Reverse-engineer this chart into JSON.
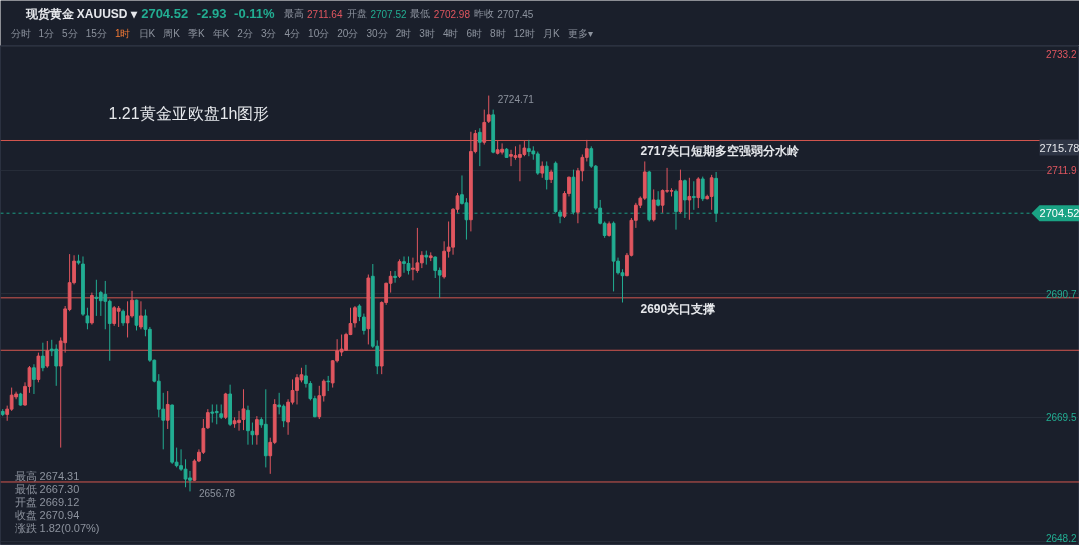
{
  "chart_data": {
    "type": "candlestick",
    "title": "现货黄金 XAUUSD ▾",
    "subtitle": "2704.52 -2.93 -0.11% 最高 2711.64 开盘 2707.52 最低 2702.98 昨收 2707.45",
    "annotations": [
      "分时 1分 5分 15分 1时 日K 周K 季K 年K 2分 3分 4分 10分 20分 30分 2时 3时 4时 6时 8时 12时 月K 更多▾",
      "1.21黄金亚欧盘1h图形",
      "2724.71",
      "2656.78",
      {
        "text": "2715.78",
        "y": 2715.78
      },
      {
        "text": "2704.52",
        "y": 2704.52
      },
      "最高 2674.31",
      "最低 2667.30",
      "开盘 2669.12",
      "收盘 2670.94",
      "涨跌 1.82(0.07%)"
    ],
    "categories": [
      null,
      null,
      null,
      null,
      null,
      null,
      null,
      null,
      null,
      null,
      null,
      null,
      null,
      null,
      null,
      null,
      null,
      null,
      null,
      null,
      null,
      null,
      null,
      null,
      null,
      null,
      null,
      null,
      null,
      null,
      null,
      null,
      null,
      null,
      null,
      null,
      null,
      null,
      null,
      null,
      null,
      null,
      null,
      null,
      null,
      null,
      null,
      null,
      null,
      null,
      null,
      null,
      null,
      null,
      null,
      null,
      null,
      null,
      null,
      null,
      null,
      null,
      null,
      null,
      null,
      null,
      null,
      null,
      null,
      null,
      null,
      null,
      null,
      null,
      null,
      null,
      null,
      null,
      null,
      null,
      null,
      null,
      null,
      null,
      null,
      null,
      null,
      null,
      null,
      null,
      null,
      null,
      null,
      null,
      null,
      null,
      null,
      null,
      null,
      null,
      null,
      null,
      null,
      null,
      null,
      null,
      null,
      null,
      null,
      null,
      null,
      null,
      null,
      null,
      null,
      null,
      null,
      null,
      null,
      null,
      null,
      null,
      null,
      null,
      null,
      null,
      null,
      null,
      null,
      null,
      null,
      null,
      null,
      null,
      null,
      null,
      null,
      null,
      null,
      null,
      null,
      null,
      null,
      null,
      null,
      null,
      null,
      null,
      null,
      null,
      null,
      null,
      null,
      null,
      null,
      null,
      null,
      null,
      null,
      null,
      null,
      null,
      null,
      null,
      null,
      null,
      null,
      null,
      null,
      null,
      null,
      null,
      null,
      null,
      null,
      null,
      null,
      null,
      null,
      null,
      null,
      null,
      null,
      null,
      null,
      null,
      null,
      null,
      null,
      null,
      null,
      null,
      null,
      null,
      null,
      null,
      null,
      null,
      null,
      null,
      null,
      null,
      null,
      null,
      null,
      null,
      null,
      null,
      null,
      null,
      null,
      null,
      null,
      null,
      null,
      null,
      null,
      null,
      null,
      null,
      null,
      null,
      null,
      null,
      null,
      null,
      null,
      null,
      null,
      null,
      null,
      null,
      null,
      null,
      null,
      null,
      null,
      null,
      null,
      null,
      null,
      null
    ],
    "ohlc": [
      [
        2670.5,
        2670.9,
        2669.7,
        2670.0
      ],
      [
        2670.0,
        2671.5,
        2668.9,
        2670.9
      ],
      [
        2670.9,
        2674.6,
        2670.6,
        2673.3
      ],
      [
        2673.0,
        2673.9,
        2672.6,
        2673.5
      ],
      [
        2673.5,
        2673.7,
        2671.5,
        2671.6
      ],
      [
        2671.6,
        2675.5,
        2671.5,
        2674.8
      ],
      [
        2674.8,
        2678.3,
        2673.7,
        2678.0
      ],
      [
        2678.0,
        2678.6,
        2673.5,
        2676.0
      ],
      [
        2676.0,
        2680.6,
        2675.5,
        2680.0
      ],
      [
        2680.0,
        2682.3,
        2677.4,
        2678.0
      ],
      [
        2678.3,
        2682.6,
        2678.0,
        2680.9
      ],
      [
        2681.2,
        2682.8,
        2680.0,
        2680.9
      ],
      [
        2681.2,
        2682.0,
        2674.9,
        2678.3
      ],
      [
        2678.3,
        2683.2,
        2664.3,
        2682.6
      ],
      [
        2682.3,
        2688.6,
        2680.6,
        2688.1
      ],
      [
        2688.0,
        2697.5,
        2687.7,
        2692.6
      ],
      [
        2692.6,
        2697.3,
        2692.3,
        2696.3
      ],
      [
        2696.3,
        2697.4,
        2695.7,
        2696.0
      ],
      [
        2695.8,
        2697.1,
        2686.9,
        2687.2
      ],
      [
        2686.9,
        2688.3,
        2684.6,
        2685.7
      ],
      [
        2685.7,
        2690.9,
        2685.4,
        2690.4
      ],
      [
        2690.1,
        2693.1,
        2686.9,
        2689.9
      ],
      [
        2690.9,
        2691.2,
        2686.9,
        2689.5
      ],
      [
        2690.6,
        2692.9,
        2684.6,
        2689.4
      ],
      [
        2689.4,
        2689.7,
        2679.2,
        2685.6
      ],
      [
        2685.6,
        2688.6,
        2685.2,
        2688.3
      ],
      [
        2687.7,
        2688.6,
        2685.0,
        2688.2
      ],
      [
        2687.7,
        2688.0,
        2685.2,
        2685.7
      ],
      [
        2685.7,
        2689.4,
        2683.2,
        2686.9
      ],
      [
        2686.9,
        2691.2,
        2686.6,
        2689.6
      ],
      [
        2689.6,
        2689.7,
        2684.4,
        2685.3
      ],
      [
        2685.0,
        2689.4,
        2684.6,
        2686.9
      ],
      [
        2686.9,
        2688.0,
        2683.4,
        2684.6
      ],
      [
        2684.6,
        2685.0,
        2679.0,
        2679.3
      ],
      [
        2679.3,
        2679.4,
        2675.5,
        2675.7
      ],
      [
        2675.7,
        2676.9,
        2669.5,
        2670.9
      ],
      [
        2670.9,
        2673.7,
        2664.0,
        2669.0
      ],
      [
        2669.0,
        2674.0,
        2667.5,
        2671.7
      ],
      [
        2671.6,
        2671.7,
        2661.5,
        2661.8
      ],
      [
        2661.8,
        2664.3,
        2660.9,
        2661.2
      ],
      [
        2661.2,
        2664.0,
        2660.3,
        2660.6
      ],
      [
        2660.6,
        2662.3,
        2657.5,
        2658.9
      ],
      [
        2659.1,
        2660.3,
        2656.78,
        2658.7
      ],
      [
        2658.7,
        2662.3,
        2658.6,
        2662.0
      ],
      [
        2662.0,
        2664.0,
        2661.8,
        2663.5
      ],
      [
        2663.5,
        2669.2,
        2663.2,
        2667.6
      ],
      [
        2667.7,
        2670.9,
        2667.5,
        2670.3
      ],
      [
        2670.4,
        2671.7,
        2668.6,
        2670.2
      ],
      [
        2670.5,
        2671.7,
        2668.3,
        2670.3
      ],
      [
        2670.1,
        2671.7,
        2669.2,
        2669.5
      ],
      [
        2669.5,
        2673.7,
        2669.2,
        2673.5
      ],
      [
        2673.5,
        2675.1,
        2668.0,
        2668.3
      ],
      [
        2668.4,
        2669.5,
        2667.7,
        2668.9
      ],
      [
        2668.6,
        2670.6,
        2667.2,
        2669.0
      ],
      [
        2669.12,
        2674.31,
        2667.3,
        2670.94
      ],
      [
        2670.7,
        2671.5,
        2664.8,
        2667.2
      ],
      [
        2667.1,
        2668.6,
        2664.8,
        2666.5
      ],
      [
        2666.5,
        2669.7,
        2664.8,
        2669.1
      ],
      [
        2669.1,
        2669.5,
        2667.7,
        2668.2
      ],
      [
        2668.3,
        2674.3,
        2660.9,
        2662.9
      ],
      [
        2662.9,
        2666.0,
        2659.8,
        2665.2
      ],
      [
        2665.2,
        2672.6,
        2664.9,
        2671.7
      ],
      [
        2671.6,
        2673.7,
        2670.0,
        2671.3
      ],
      [
        2671.4,
        2671.7,
        2667.8,
        2668.9
      ],
      [
        2668.7,
        2672.6,
        2666.5,
        2672.1
      ],
      [
        2672.1,
        2676.0,
        2671.7,
        2674.1
      ],
      [
        2674.1,
        2676.9,
        2671.7,
        2676.3
      ],
      [
        2675.9,
        2678.0,
        2675.5,
        2676.8
      ],
      [
        2676.6,
        2678.5,
        2674.6,
        2675.3
      ],
      [
        2675.3,
        2675.7,
        2672.4,
        2672.7
      ],
      [
        2672.7,
        2673.2,
        2669.5,
        2669.6
      ],
      [
        2669.6,
        2674.9,
        2669.2,
        2673.2
      ],
      [
        2673.2,
        2676.0,
        2672.2,
        2675.7
      ],
      [
        2675.7,
        2676.6,
        2674.0,
        2675.6
      ],
      [
        2675.4,
        2679.3,
        2674.6,
        2679.2
      ],
      [
        2679.2,
        2682.9,
        2678.9,
        2680.9
      ],
      [
        2680.7,
        2683.7,
        2680.0,
        2681.2
      ],
      [
        2681.0,
        2684.0,
        2680.9,
        2683.7
      ],
      [
        2683.7,
        2688.3,
        2683.6,
        2685.6
      ],
      [
        2685.7,
        2688.6,
        2684.9,
        2688.3
      ],
      [
        2688.6,
        2688.9,
        2686.0,
        2686.8
      ],
      [
        2686.7,
        2687.3,
        2683.7,
        2684.4
      ],
      [
        2684.7,
        2694.0,
        2682.0,
        2693.4
      ],
      [
        2693.7,
        2695.8,
        2681.4,
        2681.7
      ],
      [
        2681.7,
        2682.7,
        2676.9,
        2678.3
      ],
      [
        2678.3,
        2689.4,
        2676.9,
        2689.2
      ],
      [
        2689.2,
        2692.6,
        2688.8,
        2692.5
      ],
      [
        2692.5,
        2694.6,
        2690.9,
        2693.7
      ],
      [
        2693.7,
        2694.6,
        2692.6,
        2693.5
      ],
      [
        2693.7,
        2696.6,
        2693.4,
        2696.2
      ],
      [
        2696.2,
        2697.1,
        2694.3,
        2695.9
      ],
      [
        2695.9,
        2697.1,
        2694.0,
        2694.7
      ],
      [
        2694.9,
        2696.9,
        2693.0,
        2695.1
      ],
      [
        2694.7,
        2702.0,
        2694.3,
        2696.0
      ],
      [
        2696.0,
        2698.0,
        2695.1,
        2697.3
      ],
      [
        2697.3,
        2698.1,
        2695.7,
        2697.0
      ],
      [
        2696.9,
        2697.8,
        2696.3,
        2697.2
      ],
      [
        2697.0,
        2697.1,
        2693.4,
        2694.7
      ],
      [
        2694.7,
        2695.2,
        2690.0,
        2693.9
      ],
      [
        2693.6,
        2699.7,
        2693.3,
        2698.0
      ],
      [
        2698.0,
        2703.1,
        2696.9,
        2698.7
      ],
      [
        2698.7,
        2705.4,
        2697.4,
        2705.2
      ],
      [
        2705.2,
        2708.0,
        2704.6,
        2707.5
      ],
      [
        2707.7,
        2711.0,
        2706.0,
        2706.2
      ],
      [
        2706.3,
        2707.1,
        2700.0,
        2703.4
      ],
      [
        2703.4,
        2718.5,
        2701.4,
        2715.1
      ],
      [
        2715.1,
        2718.8,
        2714.8,
        2718.2
      ],
      [
        2718.4,
        2719.1,
        2712.6,
        2716.7
      ],
      [
        2716.7,
        2722.3,
        2716.3,
        2720.1
      ],
      [
        2720.3,
        2724.71,
        2720.0,
        2721.4
      ],
      [
        2721.4,
        2722.3,
        2714.8,
        2715.0
      ],
      [
        2714.8,
        2716.9,
        2714.6,
        2715.4
      ],
      [
        2715.0,
        2716.5,
        2714.6,
        2715.5
      ],
      [
        2715.5,
        2715.7,
        2714.1,
        2714.1
      ],
      [
        2714.3,
        2715.4,
        2712.6,
        2714.6
      ],
      [
        2714.1,
        2716.0,
        2713.7,
        2714.4
      ],
      [
        2714.1,
        2716.3,
        2710.0,
        2714.6
      ],
      [
        2714.6,
        2716.9,
        2714.3,
        2715.7
      ],
      [
        2715.6,
        2717.1,
        2714.3,
        2715.1
      ],
      [
        2715.2,
        2716.0,
        2713.7,
        2714.7
      ],
      [
        2714.7,
        2715.1,
        2711.1,
        2711.4
      ],
      [
        2711.4,
        2713.4,
        2710.6,
        2712.6
      ],
      [
        2712.6,
        2713.4,
        2708.6,
        2710.3
      ],
      [
        2710.3,
        2712.0,
        2709.7,
        2711.6
      ],
      [
        2713.1,
        2713.4,
        2704.6,
        2704.8
      ],
      [
        2704.7,
        2705.1,
        2702.8,
        2704.0
      ],
      [
        2704.0,
        2708.3,
        2703.7,
        2707.9
      ],
      [
        2707.9,
        2710.8,
        2707.4,
        2710.7
      ],
      [
        2710.7,
        2712.0,
        2704.3,
        2704.7
      ],
      [
        2704.7,
        2712.3,
        2702.8,
        2711.8
      ],
      [
        2711.8,
        2714.6,
        2710.0,
        2714.1
      ],
      [
        2714.1,
        2717.1,
        2713.4,
        2715.6
      ],
      [
        2715.6,
        2716.0,
        2712.3,
        2712.6
      ],
      [
        2712.6,
        2712.8,
        2705.1,
        2705.4
      ],
      [
        2705.4,
        2706.8,
        2702.6,
        2702.8
      ],
      [
        2702.8,
        2703.1,
        2700.3,
        2700.7
      ],
      [
        2700.7,
        2703.1,
        2700.5,
        2702.7
      ],
      [
        2702.8,
        2703.1,
        2691.1,
        2696.3
      ],
      [
        2696.3,
        2696.9,
        2694.0,
        2694.3
      ],
      [
        2694.3,
        2694.9,
        2689.2,
        2693.8
      ],
      [
        2693.8,
        2697.7,
        2693.7,
        2697.3
      ],
      [
        2697.3,
        2703.7,
        2697.1,
        2703.3
      ],
      [
        2703.3,
        2706.3,
        2702.0,
        2705.9
      ],
      [
        2705.9,
        2707.4,
        2705.4,
        2707.1
      ],
      [
        2707.1,
        2713.4,
        2706.8,
        2711.6
      ],
      [
        2711.6,
        2711.8,
        2703.1,
        2703.4
      ],
      [
        2703.4,
        2708.6,
        2703.1,
        2706.8
      ],
      [
        2706.8,
        2708.3,
        2705.7,
        2705.9
      ],
      [
        2705.9,
        2708.6,
        2704.6,
        2708.4
      ],
      [
        2708.3,
        2712.3,
        2708.0,
        2708.4
      ],
      [
        2708.3,
        2708.8,
        2707.4,
        2708.4
      ],
      [
        2708.3,
        2708.6,
        2701.7,
        2704.8
      ],
      [
        2704.8,
        2712.0,
        2704.5,
        2710.1
      ],
      [
        2710.1,
        2710.3,
        2703.7,
        2706.8
      ],
      [
        2706.8,
        2710.6,
        2703.4,
        2707.4
      ],
      [
        2707.4,
        2710.0,
        2705.1,
        2707.2
      ],
      [
        2707.2,
        2710.7,
        2705.4,
        2710.4
      ],
      [
        2710.4,
        2710.8,
        2706.6,
        2707.0
      ],
      [
        2707.0,
        2707.7,
        2706.9,
        2707.4
      ],
      [
        2707.4,
        2711.1,
        2705.1,
        2710.6
      ],
      [
        2710.5,
        2711.6,
        2703.0,
        2704.52
      ],
      null,
      null,
      null,
      null,
      null,
      null,
      null,
      null,
      null,
      null,
      null,
      null,
      null,
      null,
      null,
      null,
      null,
      null,
      null,
      null,
      null,
      null,
      null,
      null,
      null,
      null,
      null,
      null,
      null,
      null,
      null,
      null,
      null,
      null,
      null,
      null,
      null,
      null,
      null,
      null,
      null,
      null,
      null,
      null,
      null,
      null,
      null,
      null,
      null,
      null,
      null,
      null,
      null,
      null,
      null,
      null,
      null,
      null,
      null,
      null,
      null,
      null,
      null,
      null,
      null,
      null,
      null,
      null,
      null,
      null,
      null,
      null,
      null,
      null,
      null,
      null,
      null,
      null,
      null,
      null,
      null
    ],
    "colors": [
      "#22ad92",
      "#e0565f",
      "#e0565f",
      "#e0565f",
      "#22ad92",
      "#e0565f",
      "#e0565f",
      "#22ad92",
      "#e0565f",
      "#22ad92",
      "#e0565f",
      "#22ad92",
      "#22ad92",
      "#e0565f",
      "#e0565f",
      "#e0565f",
      "#e0565f",
      "#22ad92",
      "#22ad92",
      "#22ad92",
      "#e0565f",
      "#22ad92",
      "#22ad92",
      "#22ad92",
      "#22ad92",
      "#e0565f",
      "#e0565f",
      "#22ad92",
      "#e0565f",
      "#e0565f",
      "#22ad92",
      "#e0565f",
      "#22ad92",
      "#22ad92",
      "#22ad92",
      "#22ad92",
      "#22ad92",
      "#e0565f",
      "#22ad92",
      "#22ad92",
      "#22ad92",
      "#22ad92",
      "#22ad92",
      "#e0565f",
      "#e0565f",
      "#e0565f",
      "#e0565f",
      "#22ad92",
      "#22ad92",
      "#22ad92",
      "#e0565f",
      "#22ad92",
      "#e0565f",
      "#e0565f",
      "#e0565f",
      "#22ad92",
      "#22ad92",
      "#e0565f",
      "#22ad92",
      "#22ad92",
      "#e0565f",
      "#e0565f",
      "#22ad92",
      "#22ad92",
      "#e0565f",
      "#e0565f",
      "#e0565f",
      "#e0565f",
      "#22ad92",
      "#22ad92",
      "#22ad92",
      "#e0565f",
      "#e0565f",
      "#22ad92",
      "#e0565f",
      "#e0565f",
      "#e0565f",
      "#e0565f",
      "#e0565f",
      "#e0565f",
      "#22ad92",
      "#22ad92",
      "#e0565f",
      "#22ad92",
      "#22ad92",
      "#e0565f",
      "#e0565f",
      "#e0565f",
      "#22ad92",
      "#e0565f",
      "#22ad92",
      "#22ad92",
      "#e0565f",
      "#e0565f",
      "#e0565f",
      "#22ad92",
      "#e0565f",
      "#22ad92",
      "#22ad92",
      "#e0565f",
      "#e0565f",
      "#e0565f",
      "#e0565f",
      "#22ad92",
      "#22ad92",
      "#e0565f",
      "#e0565f",
      "#22ad92",
      "#e0565f",
      "#e0565f",
      "#22ad92",
      "#e0565f",
      "#e0565f",
      "#22ad92",
      "#e0565f",
      "#e0565f",
      "#e0565f",
      "#e0565f",
      "#22ad92",
      "#22ad92",
      "#22ad92",
      "#e0565f",
      "#22ad92",
      "#e0565f",
      "#22ad92",
      "#22ad92",
      "#e0565f",
      "#e0565f",
      "#22ad92",
      "#e0565f",
      "#e0565f",
      "#e0565f",
      "#22ad92",
      "#22ad92",
      "#22ad92",
      "#22ad92",
      "#e0565f",
      "#22ad92",
      "#22ad92",
      "#22ad92",
      "#e0565f",
      "#e0565f",
      "#e0565f",
      "#e0565f",
      "#e0565f",
      "#22ad92",
      "#e0565f",
      "#22ad92",
      "#e0565f",
      "#e0565f",
      "#e0565f",
      "#22ad92",
      "#e0565f",
      "#22ad92",
      "#e0565f",
      "#22ad92",
      "#e0565f",
      "#22ad92",
      "#e0565f",
      "#e0565f",
      "#22ad92",
      null,
      null,
      null,
      null,
      null,
      null,
      null,
      null,
      null,
      null,
      null,
      null,
      null,
      null,
      null,
      null,
      null,
      null,
      null,
      null,
      null,
      null,
      null,
      null,
      null,
      null,
      null,
      null,
      null,
      null,
      null,
      null,
      null,
      null,
      null,
      null,
      null,
      null,
      null,
      null,
      null,
      null,
      null,
      null,
      null,
      null,
      null,
      null,
      null,
      null,
      null,
      null,
      null,
      null,
      null,
      null,
      null,
      null,
      null,
      null,
      null,
      null,
      null,
      null,
      null,
      null,
      null,
      null,
      null,
      null,
      null,
      null,
      null,
      null,
      null,
      null,
      null,
      null,
      null,
      null,
      null
    ],
    "ylim": [
      2647.5,
      2733.3
    ],
    "yticks": [
      2733.2,
      2711.9,
      2690.7,
      2669.5,
      2648.2
    ],
    "grid": "y",
    "tick_labels": "y",
    "ref_lines": [
      {
        "axis": "y",
        "value": 2717,
        "label": "2717关口短期多空强弱分水岭",
        "color": "#d4574f"
      },
      {
        "axis": "y",
        "value": 2690,
        "label": "2690关口支撑",
        "color": "#d4574f"
      },
      {
        "axis": "y",
        "value": 2681,
        "color": "#d4574f"
      },
      {
        "axis": "y",
        "value": 2658.4,
        "color": "#d4574f"
      },
      {
        "axis": "y",
        "value": 2704.52,
        "color": "#1c9c84",
        "line_style": "dashed"
      }
    ]
  }
}
